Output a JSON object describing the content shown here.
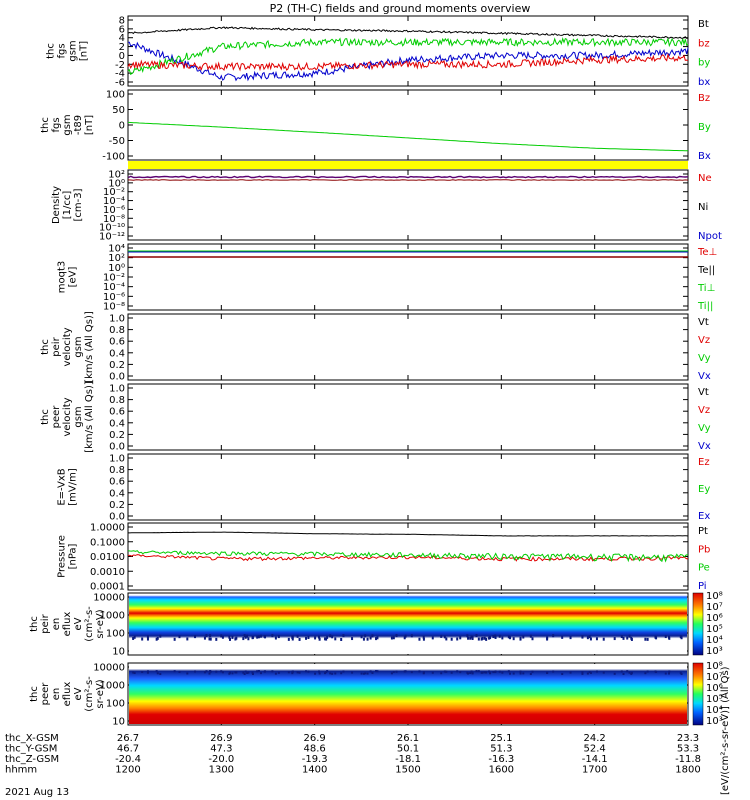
{
  "title": "P2 (TH-C) fields and ground moments overview",
  "colors": {
    "black": "#000000",
    "red": "#e00000",
    "green": "#00cc00",
    "blue": "#0000cc",
    "yellow": "#ffff00",
    "purple": "#5a0070",
    "darkred": "#8b0000"
  },
  "panels": [
    {
      "id": "p1",
      "ylabel": [
        "thc",
        "fgs",
        "gsm",
        "[nT]"
      ],
      "ticks": [
        "8",
        "6",
        "4",
        "2",
        "0",
        "-2",
        "-4",
        "-6"
      ],
      "legend": [
        {
          "text": "Bt",
          "color": "black"
        },
        {
          "text": "bz",
          "color": "red"
        },
        {
          "text": "by",
          "color": "green"
        },
        {
          "text": "bx",
          "color": "blue"
        }
      ]
    },
    {
      "id": "p2",
      "ylabel": [
        "thc",
        "fgs",
        "gsm",
        "-t89",
        "[nT]"
      ],
      "ticks": [
        "100",
        "50",
        "0",
        "-50",
        "-100"
      ],
      "legend": [
        {
          "text": "Bz",
          "color": "red"
        },
        {
          "text": "By",
          "color": "green"
        },
        {
          "text": "Bx",
          "color": "blue"
        }
      ]
    },
    {
      "id": "p3",
      "ylabel": [
        "Density",
        "[1/cc]",
        "[cm-3]"
      ],
      "ticks": [
        "10²",
        "10⁰",
        "10⁻²",
        "10⁻⁴",
        "10⁻⁶",
        "10⁻⁸",
        "10⁻¹⁰",
        "10⁻¹²"
      ],
      "legend": [
        {
          "text": "Ne",
          "color": "red"
        },
        {
          "text": "Ni",
          "color": "black"
        },
        {
          "text": "Npot",
          "color": "blue"
        }
      ]
    },
    {
      "id": "p4",
      "ylabel": [
        "moqt3",
        "[eV]"
      ],
      "ticks": [
        "10⁴",
        "10²",
        "10⁰",
        "10⁻²",
        "10⁻⁴",
        "10⁻⁶",
        "10⁻⁸"
      ],
      "legend": [
        {
          "text": "Te⊥",
          "color": "red"
        },
        {
          "text": "Te||",
          "color": "black"
        },
        {
          "text": "Ti⊥",
          "color": "green"
        },
        {
          "text": "Ti||",
          "color": "green"
        }
      ]
    },
    {
      "id": "p5",
      "ylabel": [
        "thc",
        "peir",
        "velocity",
        "gsm",
        "[km/s (All Qs)]"
      ],
      "ticks": [
        "1.0",
        "0.8",
        "0.6",
        "0.4",
        "0.2",
        "0.0"
      ],
      "legend": [
        {
          "text": "Vt",
          "color": "black"
        },
        {
          "text": "Vz",
          "color": "red"
        },
        {
          "text": "Vy",
          "color": "green"
        },
        {
          "text": "Vx",
          "color": "blue"
        }
      ]
    },
    {
      "id": "p6",
      "ylabel": [
        "thc",
        "peer",
        "velocity",
        "gsm",
        "[km/s (All Qs)]"
      ],
      "ticks": [
        "1.0",
        "0.8",
        "0.6",
        "0.4",
        "0.2",
        "0.0"
      ],
      "legend": [
        {
          "text": "Vt",
          "color": "black"
        },
        {
          "text": "Vz",
          "color": "red"
        },
        {
          "text": "Vy",
          "color": "green"
        },
        {
          "text": "Vx",
          "color": "blue"
        }
      ]
    },
    {
      "id": "p7",
      "ylabel": [
        "E=-VxB",
        "[mV/m]"
      ],
      "ticks": [
        "1.0",
        "0.8",
        "0.6",
        "0.4",
        "0.2",
        "0.0"
      ],
      "legend": [
        {
          "text": "Ez",
          "color": "red"
        },
        {
          "text": "Ey",
          "color": "green"
        },
        {
          "text": "Ex",
          "color": "blue"
        }
      ]
    },
    {
      "id": "p8",
      "ylabel": [
        "Pressure",
        "[nPa]"
      ],
      "ticks": [
        "1.0000",
        "0.1000",
        "0.0100",
        "0.0010",
        "0.0001"
      ],
      "legend": [
        {
          "text": "Pt",
          "color": "black"
        },
        {
          "text": "Pb",
          "color": "red"
        },
        {
          "text": "Pe",
          "color": "green"
        },
        {
          "text": "Pi",
          "color": "blue"
        }
      ]
    },
    {
      "id": "p9",
      "ylabel": [
        "thc",
        "peir",
        "en",
        "eflux",
        "eV",
        "(cm²-s-",
        "sr-eV)"
      ],
      "ticks": [
        "10000",
        "1000",
        "100",
        "10"
      ],
      "legend": []
    },
    {
      "id": "p10",
      "ylabel": [
        "thc",
        "peer",
        "en",
        "eflux",
        "eV",
        "(cm²-s-",
        "sr-eV)"
      ],
      "ticks": [
        "10000",
        "1000",
        "100",
        "10"
      ],
      "legend": []
    }
  ],
  "colorbar": {
    "ticks": [
      "10⁸",
      "10⁷",
      "10⁶",
      "10⁵",
      "10⁴",
      "10³"
    ],
    "ticks2": [
      "10⁸",
      "10⁷",
      "10⁶",
      "10⁵",
      "10⁴",
      "10³"
    ],
    "label": "[eV/(cm²-s-sr-eV)] (All Qs)"
  },
  "xaxis": {
    "rows": [
      {
        "label": "thc_X-GSM",
        "values": [
          "26.7",
          "26.9",
          "26.9",
          "26.1",
          "25.1",
          "24.2",
          "23.3"
        ]
      },
      {
        "label": "thc_Y-GSM",
        "values": [
          "46.7",
          "47.3",
          "48.6",
          "50.1",
          "51.3",
          "52.4",
          "53.3"
        ]
      },
      {
        "label": "thc_Z-GSM",
        "values": [
          "-20.4",
          "-20.0",
          "-19.3",
          "-18.1",
          "-16.3",
          "-14.1",
          "-11.8"
        ]
      },
      {
        "label": "hhmm",
        "values": [
          "1200",
          "1300",
          "1400",
          "1500",
          "1600",
          "1700",
          "1800"
        ]
      }
    ],
    "date": "2021 Aug 13"
  },
  "chart_data": [
    {
      "type": "line",
      "panel": "fgs gsm",
      "xlabel": "hhmm",
      "x": [
        "1200",
        "1300",
        "1400",
        "1500",
        "1600",
        "1700",
        "1800"
      ],
      "ylim": [
        -6,
        8
      ],
      "series": [
        {
          "name": "Bt",
          "values": [
            5.0,
            6.3,
            5.8,
            5.5,
            5.0,
            4.5,
            4.0
          ]
        },
        {
          "name": "bz",
          "values": [
            -2,
            -2.5,
            -2.5,
            -2,
            -2,
            -1,
            -0.5
          ]
        },
        {
          "name": "by",
          "values": [
            -4,
            2,
            3,
            3,
            3,
            3,
            3
          ]
        },
        {
          "name": "bx",
          "values": [
            3,
            -5,
            -4,
            -1,
            0,
            0,
            1
          ]
        }
      ]
    },
    {
      "type": "line",
      "panel": "fgs gsm -t89",
      "xlabel": "hhmm",
      "x": [
        "1200",
        "1300",
        "1400",
        "1500",
        "1600",
        "1700",
        "1800"
      ],
      "ylim": [
        -130,
        110
      ],
      "series": [
        {
          "name": "By",
          "values": [
            0,
            -18,
            -38,
            -60,
            -82,
            -100,
            -110
          ]
        }
      ]
    },
    {
      "type": "line",
      "panel": "Pressure",
      "xlabel": "hhmm",
      "x": [
        "1200",
        "1300",
        "1400",
        "1500",
        "1600",
        "1700",
        "1800"
      ],
      "ylim": [
        0.0001,
        1.0
      ],
      "series": [
        {
          "name": "Pt",
          "values": [
            0.4,
            0.45,
            0.35,
            0.32,
            0.25,
            0.25,
            0.25
          ]
        },
        {
          "name": "Pb",
          "values": [
            0.012,
            0.007,
            0.008,
            0.009,
            0.007,
            0.007,
            0.008
          ]
        },
        {
          "name": "Pe",
          "values": [
            0.02,
            0.017,
            0.015,
            0.013,
            0.011,
            0.01,
            0.009
          ]
        }
      ]
    },
    {
      "type": "heatmap",
      "panel": "peir en eflux",
      "xlabel": "hhmm",
      "ylabel": "eV",
      "ylim": [
        10,
        10000
      ]
    },
    {
      "type": "heatmap",
      "panel": "peer en eflux",
      "xlabel": "hhmm",
      "ylabel": "eV",
      "ylim": [
        10,
        10000
      ]
    }
  ]
}
